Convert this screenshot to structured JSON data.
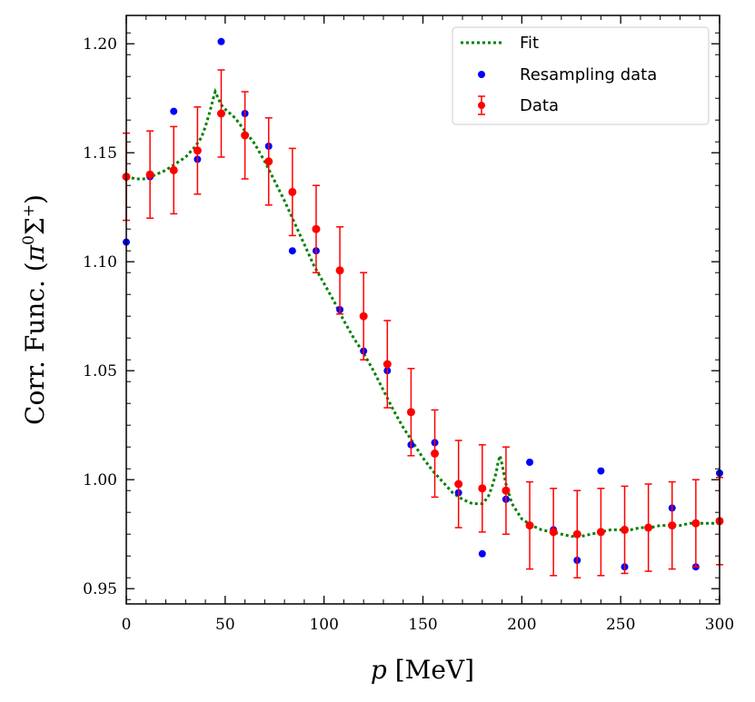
{
  "chart_data": {
    "type": "scatter",
    "xlabel_italic": "p",
    "xlabel_rest": " [MeV]",
    "ylabel_main": "Corr. Func. (",
    "ylabel_pi": "π",
    "ylabel_sup0": "0",
    "ylabel_sigma": "Σ",
    "ylabel_sup_plus": "+",
    "ylabel_close": ")",
    "xlim": [
      0,
      300
    ],
    "ylim": [
      0.943,
      1.213
    ],
    "x_ticks": [
      0,
      50,
      100,
      150,
      200,
      250,
      300
    ],
    "x_tick_labels": [
      "0",
      "50",
      "100",
      "150",
      "200",
      "250",
      "300"
    ],
    "y_ticks": [
      0.95,
      1.0,
      1.05,
      1.1,
      1.15,
      1.2
    ],
    "y_tick_labels": [
      "0.95",
      "1.00",
      "1.05",
      "1.10",
      "1.15",
      "1.20"
    ],
    "legend": {
      "position": "top-right",
      "entries": [
        {
          "label": "Fit",
          "color": "#008000",
          "style": "dotted-line"
        },
        {
          "label": "Resampling data",
          "color": "#0000ff",
          "style": "marker"
        },
        {
          "label": "Data",
          "color": "#ff0000",
          "style": "errorbar"
        }
      ]
    },
    "series": [
      {
        "name": "Fit",
        "color": "#008000",
        "x": [
          0,
          5,
          10,
          15,
          20,
          25,
          30,
          35,
          38,
          40,
          42,
          44,
          45,
          46,
          48,
          50,
          55,
          60,
          65,
          70,
          75,
          80,
          85,
          90,
          95,
          100,
          105,
          110,
          115,
          120,
          125,
          130,
          135,
          140,
          145,
          150,
          155,
          160,
          165,
          170,
          175,
          180,
          183,
          185,
          187,
          188,
          189,
          190,
          192,
          195,
          200,
          205,
          210,
          215,
          220,
          225,
          230,
          235,
          240,
          245,
          250,
          255,
          260,
          265,
          270,
          275,
          280,
          285,
          290,
          295,
          300
        ],
        "y": [
          1.139,
          1.138,
          1.138,
          1.14,
          1.142,
          1.145,
          1.148,
          1.153,
          1.157,
          1.162,
          1.168,
          1.175,
          1.178,
          1.176,
          1.172,
          1.17,
          1.166,
          1.16,
          1.154,
          1.146,
          1.137,
          1.128,
          1.118,
          1.108,
          1.098,
          1.09,
          1.082,
          1.073,
          1.065,
          1.058,
          1.05,
          1.041,
          1.032,
          1.024,
          1.017,
          1.01,
          1.004,
          0.999,
          0.994,
          0.991,
          0.989,
          0.989,
          0.992,
          0.997,
          1.003,
          1.008,
          1.011,
          1.007,
          0.998,
          0.989,
          0.982,
          0.979,
          0.977,
          0.976,
          0.975,
          0.974,
          0.974,
          0.975,
          0.976,
          0.977,
          0.977,
          0.977,
          0.978,
          0.978,
          0.979,
          0.979,
          0.979,
          0.98,
          0.98,
          0.98,
          0.98
        ]
      },
      {
        "name": "Resampling data",
        "color": "#0000ff",
        "x": [
          0,
          12,
          24,
          36,
          48,
          60,
          72,
          84,
          96,
          108,
          120,
          132,
          144,
          156,
          168,
          180,
          192,
          204,
          216,
          228,
          240,
          252,
          264,
          276,
          288,
          300
        ],
        "y": [
          1.109,
          1.139,
          1.169,
          1.147,
          1.201,
          1.168,
          1.153,
          1.105,
          1.105,
          1.078,
          1.059,
          1.05,
          1.016,
          1.017,
          0.994,
          0.966,
          0.991,
          1.008,
          0.977,
          0.963,
          1.004,
          0.96,
          0.978,
          0.987,
          0.96,
          1.003
        ]
      },
      {
        "name": "Data",
        "color": "#ff0000",
        "x": [
          0,
          12,
          24,
          36,
          48,
          60,
          72,
          84,
          96,
          108,
          120,
          132,
          144,
          156,
          168,
          180,
          192,
          204,
          216,
          228,
          240,
          252,
          264,
          276,
          288,
          300
        ],
        "y": [
          1.139,
          1.14,
          1.142,
          1.151,
          1.168,
          1.158,
          1.146,
          1.132,
          1.115,
          1.096,
          1.075,
          1.053,
          1.031,
          1.012,
          0.998,
          0.996,
          0.995,
          0.979,
          0.976,
          0.975,
          0.976,
          0.977,
          0.978,
          0.979,
          0.98,
          0.981
        ],
        "yerr": [
          0.02,
          0.02,
          0.02,
          0.02,
          0.02,
          0.02,
          0.02,
          0.02,
          0.02,
          0.02,
          0.02,
          0.02,
          0.02,
          0.02,
          0.02,
          0.02,
          0.02,
          0.02,
          0.02,
          0.02,
          0.02,
          0.02,
          0.02,
          0.02,
          0.02,
          0.02
        ]
      }
    ]
  }
}
